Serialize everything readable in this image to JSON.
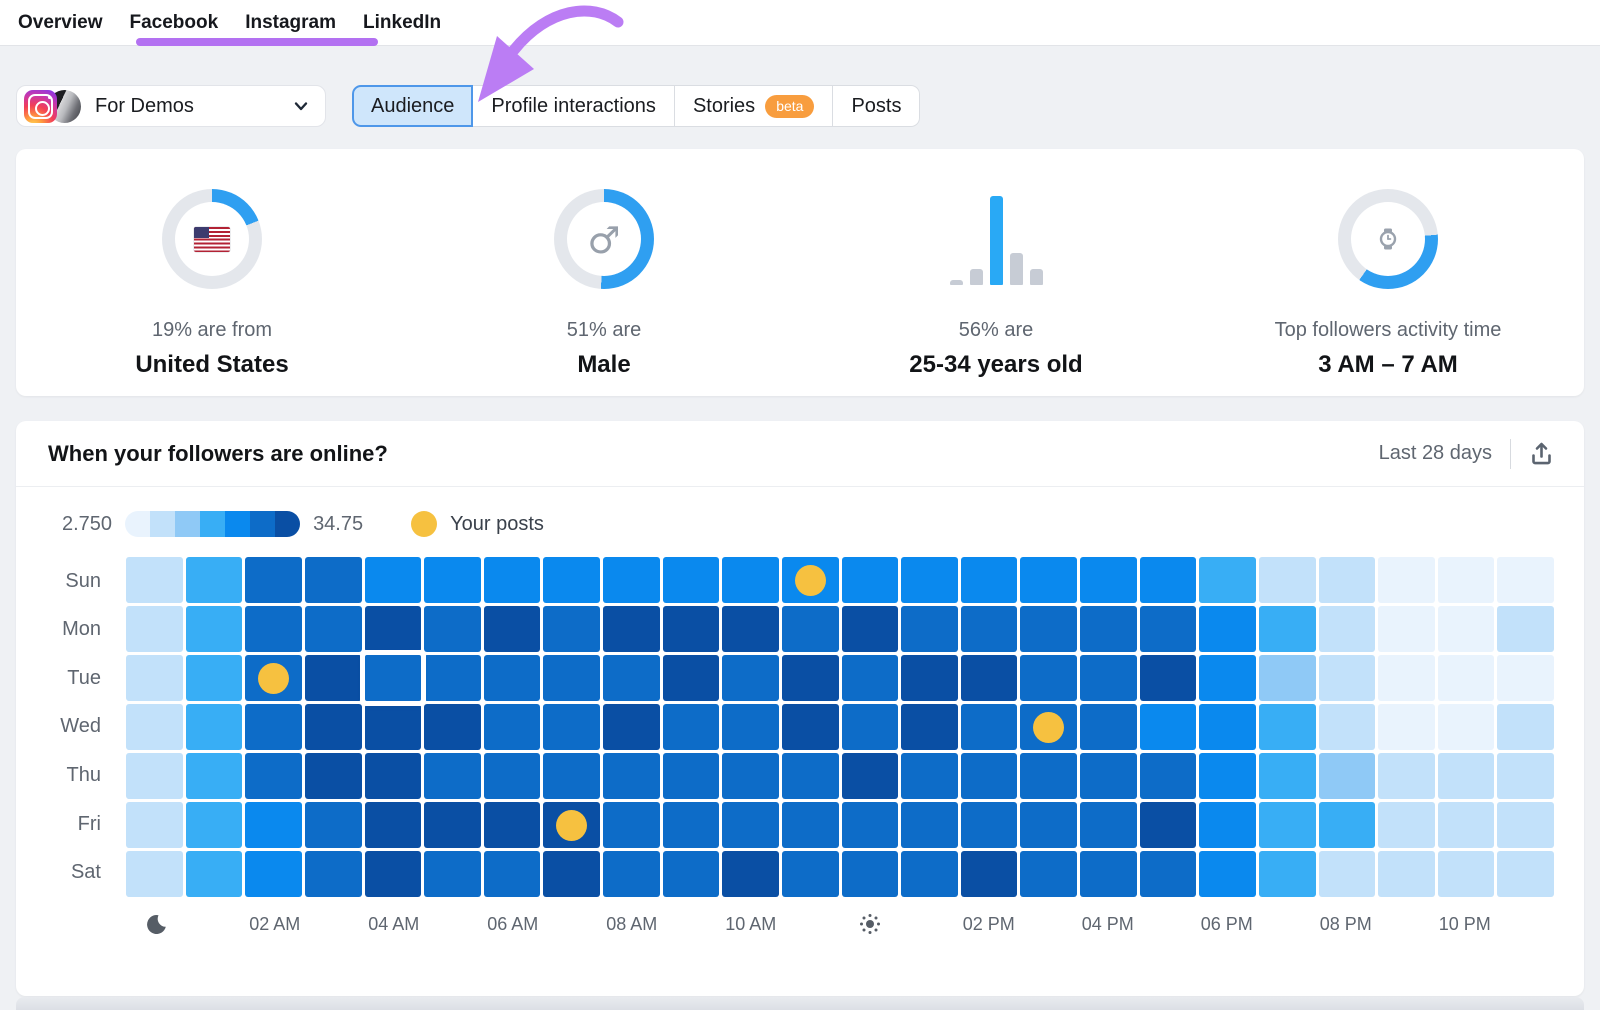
{
  "nav": {
    "items": [
      "Overview",
      "Facebook",
      "Instagram",
      "LinkedIn"
    ]
  },
  "account": {
    "name": "For Demos"
  },
  "tabs": [
    {
      "label": "Audience",
      "selected": true
    },
    {
      "label": "Profile interactions",
      "selected": false
    },
    {
      "label": "Stories",
      "selected": false,
      "badge": "beta"
    },
    {
      "label": "Posts",
      "selected": false
    }
  ],
  "colors": {
    "accent": "#2F9FF1",
    "donut_track": "#E4E7EC",
    "bar_gray": "#C7CCD5",
    "post_dot": "#F6C140",
    "purple": "#B371F1"
  },
  "stats": [
    {
      "type": "donut",
      "percent": 19,
      "icon": "us-flag",
      "line1": "19% are from",
      "line2": "United States"
    },
    {
      "type": "donut",
      "percent": 51,
      "icon": "male",
      "icon_glyph": "♂",
      "line1": "51% are",
      "line2": "Male"
    },
    {
      "type": "bars",
      "line1": "56% are",
      "line2": "25-34 years old",
      "bars": [
        {
          "h": 5
        },
        {
          "h": 16
        },
        {
          "h": 89,
          "accent": true
        },
        {
          "h": 32
        },
        {
          "h": 16
        }
      ]
    },
    {
      "type": "donut-range",
      "icon": "watch",
      "arc": [
        85,
        215
      ],
      "line1": "Top followers activity time",
      "line2": "3 AM – 7 AM"
    }
  ],
  "heatmap": {
    "title": "When your followers are online?",
    "period": "Last 28 days",
    "legend": {
      "min": "2.750",
      "max": "34.75",
      "posts_label": "Your posts"
    },
    "palette": [
      "#E9F3FD",
      "#C2E1FA",
      "#8FC9F6",
      "#38AEF5",
      "#0A89EE",
      "#0D6CC8",
      "#0A4FA4"
    ],
    "days": [
      "Sun",
      "Mon",
      "Tue",
      "Wed",
      "Thu",
      "Fri",
      "Sat"
    ],
    "values": [
      [
        2,
        4,
        6,
        6,
        5,
        5,
        5,
        5,
        5,
        5,
        5,
        5,
        5,
        5,
        5,
        5,
        5,
        5,
        4,
        2,
        2,
        1,
        1,
        1
      ],
      [
        2,
        4,
        6,
        6,
        7,
        6,
        7,
        6,
        7,
        7,
        7,
        6,
        7,
        6,
        6,
        6,
        6,
        6,
        5,
        4,
        2,
        1,
        1,
        2
      ],
      [
        2,
        4,
        6,
        7,
        6,
        6,
        6,
        6,
        6,
        7,
        6,
        7,
        6,
        7,
        7,
        6,
        6,
        7,
        5,
        3,
        2,
        1,
        1,
        1
      ],
      [
        2,
        4,
        6,
        7,
        7,
        7,
        6,
        6,
        7,
        6,
        6,
        7,
        6,
        7,
        6,
        6,
        6,
        5,
        5,
        4,
        2,
        1,
        1,
        2
      ],
      [
        2,
        4,
        6,
        7,
        7,
        6,
        6,
        6,
        6,
        6,
        6,
        6,
        7,
        6,
        6,
        6,
        6,
        6,
        5,
        4,
        3,
        2,
        2,
        2
      ],
      [
        2,
        4,
        5,
        6,
        7,
        7,
        7,
        7,
        6,
        6,
        6,
        6,
        6,
        6,
        6,
        6,
        6,
        7,
        5,
        4,
        4,
        2,
        2,
        2
      ],
      [
        2,
        4,
        5,
        6,
        7,
        6,
        6,
        7,
        6,
        6,
        7,
        6,
        6,
        6,
        7,
        6,
        6,
        6,
        5,
        4,
        2,
        2,
        2,
        2
      ]
    ],
    "posts": [
      {
        "day": 0,
        "hour": 11
      },
      {
        "day": 2,
        "hour": 2
      },
      {
        "day": 3,
        "hour": 15
      },
      {
        "day": 5,
        "hour": 7
      }
    ],
    "selected_cell": {
      "day": 2,
      "hour": 4
    },
    "axis": [
      {
        "col": 0,
        "icon": "moon"
      },
      {
        "col": 2,
        "label": "02 AM"
      },
      {
        "col": 4,
        "label": "04 AM"
      },
      {
        "col": 6,
        "label": "06 AM"
      },
      {
        "col": 8,
        "label": "08 AM"
      },
      {
        "col": 10,
        "label": "10 AM"
      },
      {
        "col": 12,
        "icon": "sun"
      },
      {
        "col": 14,
        "label": "02 PM"
      },
      {
        "col": 16,
        "label": "04 PM"
      },
      {
        "col": 18,
        "label": "06 PM"
      },
      {
        "col": 20,
        "label": "08 PM"
      },
      {
        "col": 22,
        "label": "10 PM"
      }
    ]
  }
}
